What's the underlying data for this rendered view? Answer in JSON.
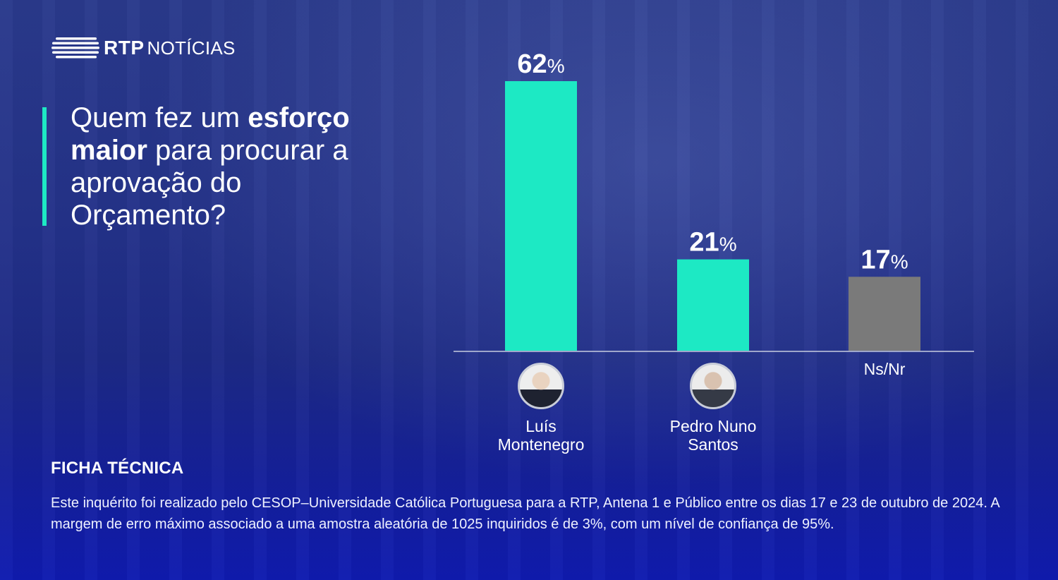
{
  "brand": {
    "name": "RTP",
    "section": "NOTÍCIAS"
  },
  "question": {
    "part1": "Quem fez um ",
    "bold1": "esforço maior",
    "part2": " para procurar a aprovação do Orçamento?"
  },
  "chart_data": {
    "type": "bar",
    "categories": [
      "Luís Montenegro",
      "Pedro Nuno Santos",
      "Ns/Nr"
    ],
    "values": [
      62,
      21,
      17
    ],
    "value_unit": "%",
    "value_labels": [
      "62",
      "21",
      "17"
    ],
    "colors": [
      "#1de9c4",
      "#1de9c4",
      "#7a7a7a"
    ],
    "ylim": [
      0,
      62
    ],
    "grid": false,
    "legend": "none",
    "label_lines": [
      [
        "Luís",
        "Montenegro"
      ],
      [
        "Pedro Nuno",
        "Santos"
      ],
      [
        "Ns/Nr"
      ]
    ],
    "avatars": [
      "luis-montenegro-avatar-icon",
      "pedro-nuno-santos-avatar-icon",
      null
    ]
  },
  "ficha_tecnica": {
    "title": "FICHA TÉCNICA",
    "text": "Este inquérito foi realizado pelo CESOP–Universidade Católica Portuguesa para a RTP, Antena 1 e Público entre os dias 17 e 23 de outubro de 2024. A margem de erro máximo associado a uma amostra aleatória de 1025 inquiridos é de 3%, com um nível de confiança de 95%."
  }
}
